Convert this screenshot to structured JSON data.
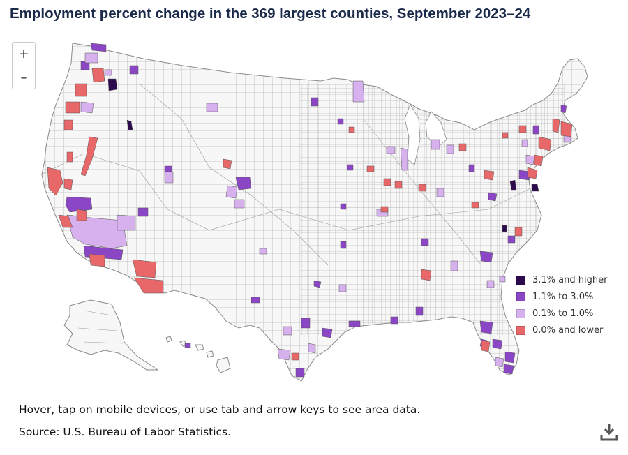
{
  "title": "Employment percent change in the 369 largest counties, September 2023–24",
  "zoom": {
    "in_label": "+",
    "out_label": "–"
  },
  "legend": [
    {
      "label": "3.1% and higher",
      "color": "#2d0a4e"
    },
    {
      "label": "1.1% to 3.0%",
      "color": "#8b46c6"
    },
    {
      "label": "0.1% to 1.0%",
      "color": "#d7b0ee"
    },
    {
      "label": "0.0% and lower",
      "color": "#e8686a"
    }
  ],
  "map": {
    "base_fill": "#f7f7f7",
    "border_color": "#8a8a8a"
  },
  "note": "Hover, tap on mobile devices, or use tab and arrow keys to see area data.",
  "source": "Source: U.S. Bureau of Labor Statistics.",
  "icons": {
    "download": "download-icon"
  }
}
